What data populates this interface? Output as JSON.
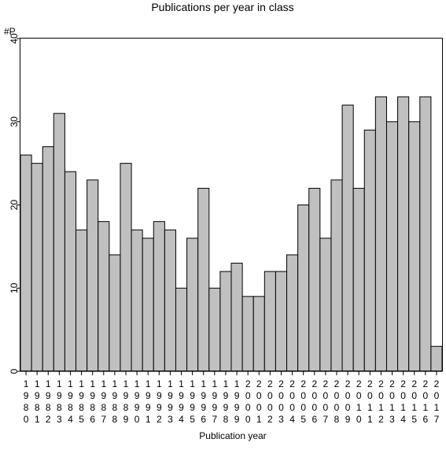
{
  "chart_data": {
    "type": "bar",
    "title": "Publications per year in class",
    "ylabel": "#P",
    "xlabel": "Publication year",
    "categories": [
      "1980",
      "1981",
      "1982",
      "1983",
      "1984",
      "1985",
      "1986",
      "1987",
      "1988",
      "1989",
      "1990",
      "1991",
      "1992",
      "1993",
      "1994",
      "1995",
      "1996",
      "1997",
      "1998",
      "1999",
      "2000",
      "2001",
      "2002",
      "2003",
      "2004",
      "2005",
      "2006",
      "2007",
      "2008",
      "2009",
      "2010",
      "2011",
      "2012",
      "2013",
      "2014",
      "2015",
      "2016",
      "2017"
    ],
    "values": [
      26,
      25,
      27,
      31,
      24,
      17,
      23,
      18,
      14,
      25,
      17,
      16,
      18,
      17,
      10,
      16,
      22,
      10,
      12,
      13,
      9,
      9,
      12,
      12,
      14,
      20,
      22,
      16,
      23,
      32,
      22,
      29,
      33,
      30,
      33,
      30,
      33,
      3
    ],
    "ylim": [
      0,
      40
    ],
    "yticks": [
      0,
      10,
      20,
      30,
      40
    ],
    "grid": false,
    "bar_color": "#c0c0c0",
    "bar_edge_color": "#000000"
  }
}
